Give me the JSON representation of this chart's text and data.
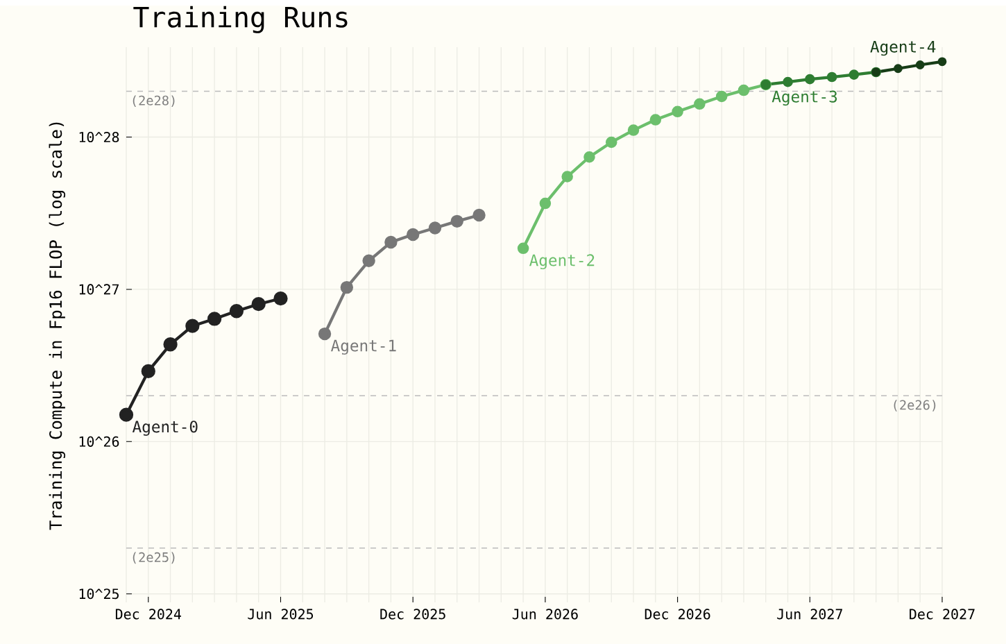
{
  "chart_data": {
    "type": "line",
    "title": "Training Runs",
    "ylabel": "Training Compute in Fp16 FLOP (log scale)",
    "log": "y",
    "grid": true,
    "marker": "circle",
    "line_style": "solid",
    "xlim": [
      "2024-11",
      "2027-12"
    ],
    "ylim": [
      8.8e+24,
      3.9e+28
    ],
    "xticks": [
      {
        "value": "2024-12",
        "label": "Dec 2024"
      },
      {
        "value": "2025-06",
        "label": "Jun 2025"
      },
      {
        "value": "2025-12",
        "label": "Dec 2025"
      },
      {
        "value": "2026-06",
        "label": "Jun 2026"
      },
      {
        "value": "2026-12",
        "label": "Dec 2026"
      },
      {
        "value": "2027-06",
        "label": "Jun 2027"
      },
      {
        "value": "2027-12",
        "label": "Dec 2027"
      }
    ],
    "yticks": [
      {
        "value": 1e+25,
        "label": "10^25"
      },
      {
        "value": 1e+26,
        "label": "10^26"
      },
      {
        "value": 1e+27,
        "label": "10^27"
      },
      {
        "value": 1e+28,
        "label": "10^28"
      }
    ],
    "series": [
      {
        "name": "Agent-0",
        "color": "#222222",
        "x": [
          "2024-11",
          "2024-12",
          "2025-01",
          "2025-02",
          "2025-03",
          "2025-04",
          "2025-05",
          "2025-06"
        ],
        "values": [
          1.5e+26,
          2.9e+26,
          4.35e+26,
          5.75e+26,
          6.4e+26,
          7.2e+26,
          8e+26,
          8.7e+26
        ]
      },
      {
        "name": "Agent-1",
        "color": "#777777",
        "x": [
          "2025-08",
          "2025-09",
          "2025-10",
          "2025-11",
          "2025-12",
          "2026-01",
          "2026-02",
          "2026-03"
        ],
        "values": [
          5.1e+26,
          1.03e+27,
          1.54e+27,
          2.04e+27,
          2.29e+27,
          2.53e+27,
          2.8e+27,
          3.07e+27
        ]
      },
      {
        "name": "Agent-2",
        "color": "#6cbf6c",
        "x": [
          "2026-05",
          "2026-06",
          "2026-07",
          "2026-08",
          "2026-09",
          "2026-10",
          "2026-11",
          "2026-12",
          "2027-01",
          "2027-02",
          "2027-03",
          "2027-04"
        ],
        "values": [
          1.86e+27,
          3.67e+27,
          5.5e+27,
          7.4e+27,
          9.25e+27,
          1.11e+28,
          1.3e+28,
          1.47e+28,
          1.65e+28,
          1.85e+28,
          2.03e+28,
          2.21e+28
        ]
      },
      {
        "name": "Agent-3",
        "color": "#2e7d32",
        "x": [
          "2027-04",
          "2027-05",
          "2027-06",
          "2027-07",
          "2027-08",
          "2027-09"
        ],
        "values": [
          2.21e+28,
          2.3e+28,
          2.4e+28,
          2.48e+28,
          2.57e+28,
          2.67e+28
        ]
      },
      {
        "name": "Agent-4",
        "color": "#173d17",
        "x": [
          "2027-09",
          "2027-10",
          "2027-11",
          "2027-12"
        ],
        "values": [
          2.67e+28,
          2.82e+28,
          2.98e+28,
          3.13e+28
        ]
      }
    ],
    "ref_lines": [
      {
        "axis": "y",
        "value": 2e+28,
        "label": "(2e28)",
        "color": "#bbbbbb",
        "line_style": "dashed"
      },
      {
        "axis": "y",
        "value": 2e+26,
        "label": "(2e26)",
        "color": "#bbbbbb",
        "line_style": "dashed"
      },
      {
        "axis": "y",
        "value": 2e+25,
        "label": "(2e25)",
        "color": "#bbbbbb",
        "line_style": "dashed"
      }
    ]
  }
}
